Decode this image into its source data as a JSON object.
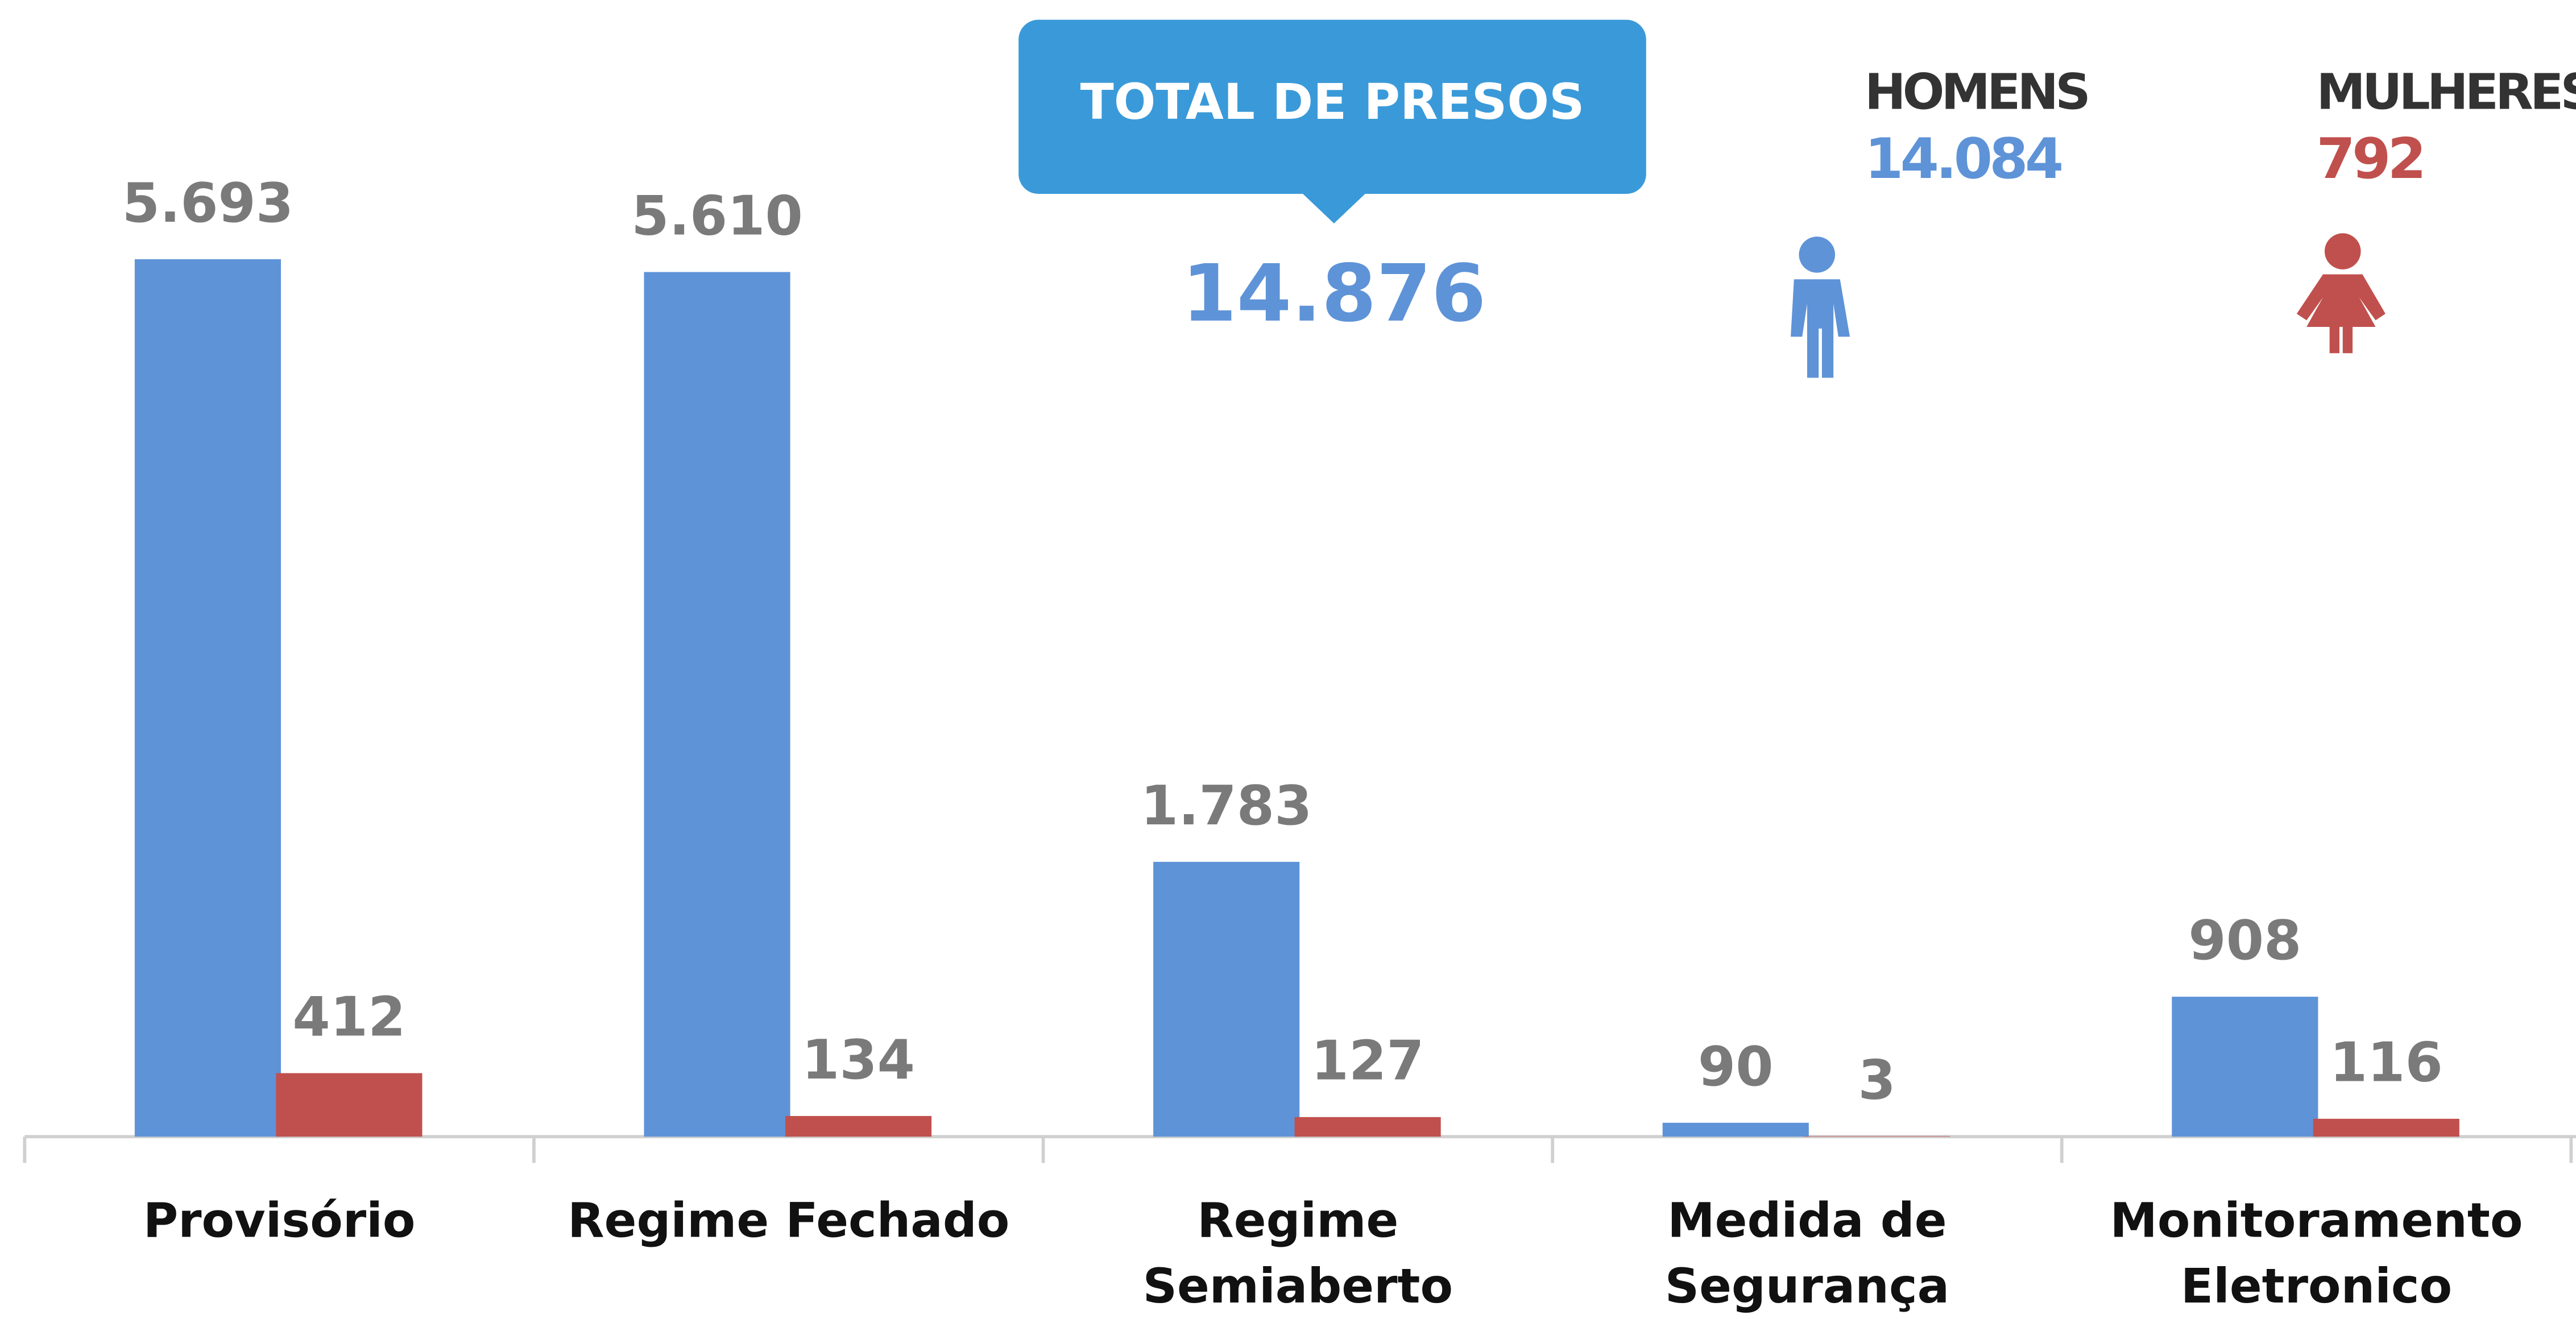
{
  "chart_data": {
    "type": "bar",
    "categories": [
      "Provisório",
      "Regime Fechado",
      "Regime\nSemiaberto",
      "Medida de\nSegurança",
      "Monitoramento\nEletronico"
    ],
    "series": [
      {
        "name": "HOMENS",
        "color": "#5e93d7",
        "values": [
          5693,
          5610,
          1783,
          90,
          908
        ],
        "value_labels": [
          "5.693",
          "5.610",
          "1.783",
          "90",
          "908"
        ],
        "total": 14084,
        "total_label": "14.084"
      },
      {
        "name": "MULHERES",
        "color": "#c0504d",
        "values": [
          412,
          134,
          127,
          3,
          116
        ],
        "value_labels": [
          "412",
          "134",
          "127",
          "3",
          "116"
        ],
        "total": 792,
        "total_label": "792"
      }
    ],
    "callout": {
      "title": "TOTAL DE PRESOS",
      "value": 14876,
      "value_label": "14.876"
    },
    "ylim": [
      0,
      6000
    ]
  }
}
